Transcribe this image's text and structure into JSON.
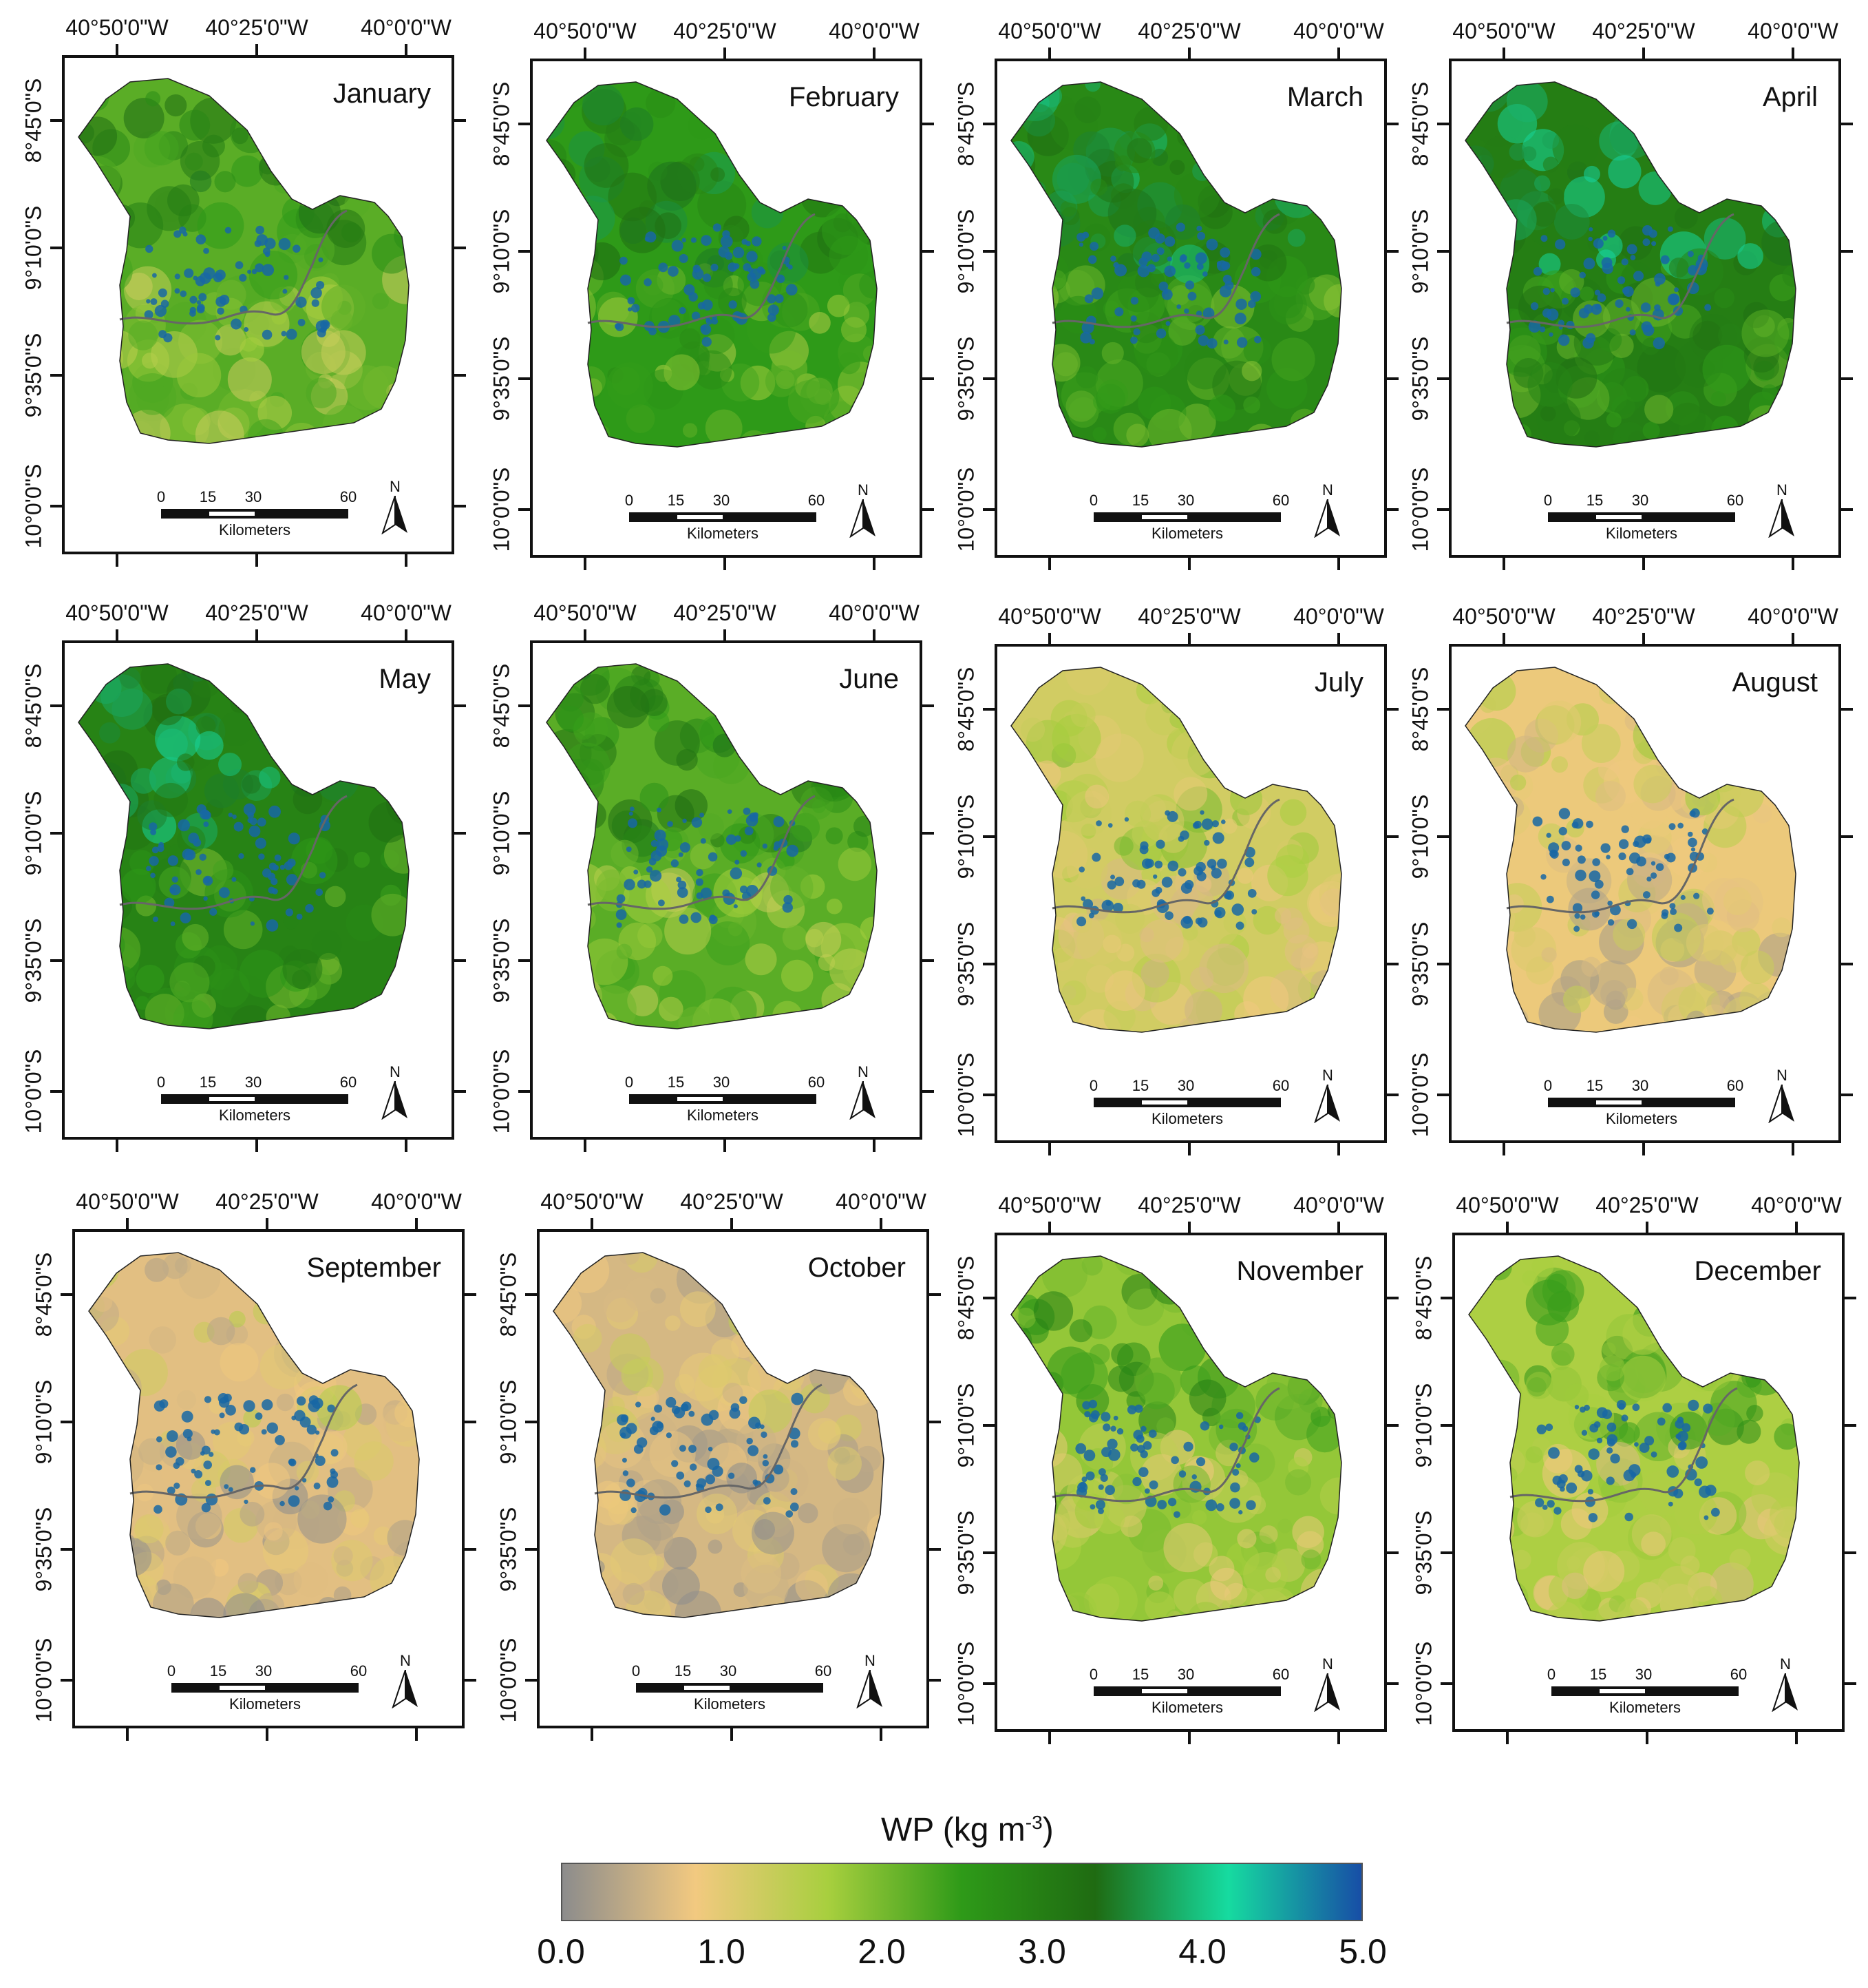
{
  "lon_labels": [
    "40°50'0\"W",
    "40°25'0\"W",
    "40°0'0\"W"
  ],
  "lat_labels": [
    "8°45'0\"S",
    "9°10'0\"S",
    "9°35'0\"S",
    "10°0'0\"S"
  ],
  "scalebar": {
    "ticks": [
      "0",
      "15",
      "30",
      "60"
    ],
    "unit": "Kilometers"
  },
  "north_label": "N",
  "months": [
    {
      "name": "January",
      "level": 2.2
    },
    {
      "name": "February",
      "level": 2.5
    },
    {
      "name": "March",
      "level": 2.8
    },
    {
      "name": "April",
      "level": 3.0
    },
    {
      "name": "May",
      "level": 2.9
    },
    {
      "name": "June",
      "level": 2.2
    },
    {
      "name": "July",
      "level": 1.2
    },
    {
      "name": "August",
      "level": 0.9
    },
    {
      "name": "September",
      "level": 0.7
    },
    {
      "name": "October",
      "level": 0.6
    },
    {
      "name": "November",
      "level": 1.8
    },
    {
      "name": "December",
      "level": 1.6
    }
  ],
  "legend": {
    "title": "WP (kg m",
    "title_sup": "-3",
    "title_close": ")",
    "ticks": [
      "0.0",
      "1.0",
      "2.0",
      "3.0",
      "4.0",
      "5.0"
    ],
    "range": [
      0,
      5
    ],
    "colors": [
      "#8c8c8c",
      "#f2c980",
      "#a7cf3e",
      "#2e9a18",
      "#1f6b12",
      "#16dba0",
      "#174ea6"
    ]
  }
}
